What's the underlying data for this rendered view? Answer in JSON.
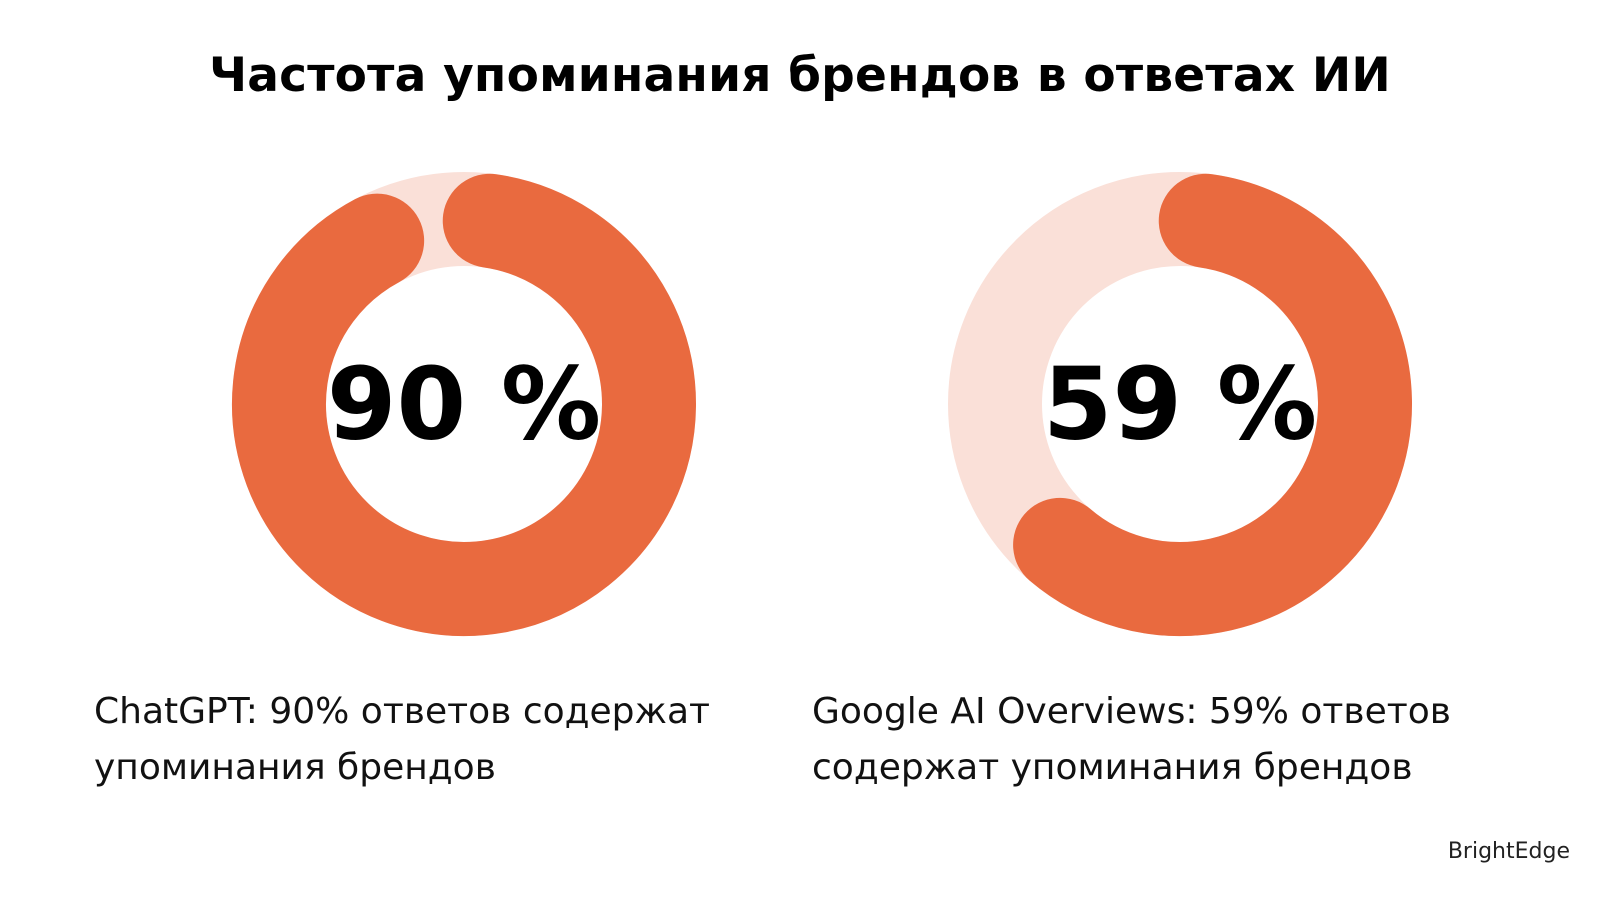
{
  "chart_data": [
    {
      "type": "pie",
      "style": "donut",
      "label": "ChatGPT",
      "value": 90,
      "value_text": "90 %",
      "caption_lines": [
        "ChatGPT: 90% ответов содержат",
        "упоминания брендов"
      ]
    },
    {
      "type": "pie",
      "style": "donut",
      "label": "Google AI Overviews",
      "value": 59,
      "value_text": "59 %",
      "caption_lines": [
        "Google AI Overviews: 59% ответов",
        "содержат упоминания брендов"
      ]
    }
  ],
  "title": "Частота упоминания брендов в ответах ИИ",
  "source": "BrightEdge",
  "colors": {
    "fill": "#e96a3f",
    "track": "#fae0d8",
    "text": "#000000"
  }
}
